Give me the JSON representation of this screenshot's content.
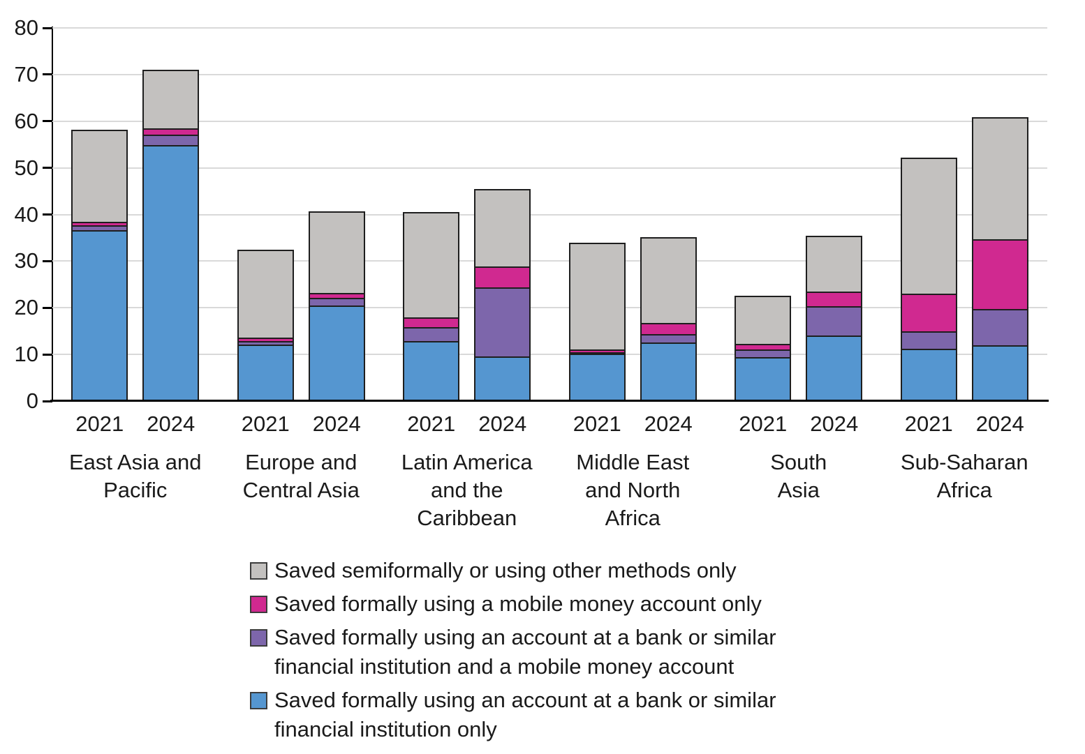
{
  "chart_data": {
    "type": "bar",
    "stacked": true,
    "title": "",
    "xlabel": "",
    "ylabel": "",
    "ylim": [
      0,
      80
    ],
    "yticks": [
      0,
      10,
      20,
      30,
      40,
      50,
      60,
      70,
      80
    ],
    "grid": "horizontal",
    "legend_position": "bottom",
    "year_labels": [
      "2021",
      "2024"
    ],
    "regions": [
      {
        "name": "East Asia and Pacific",
        "label_lines": [
          "East Asia and",
          "Pacific"
        ]
      },
      {
        "name": "Europe and Central Asia",
        "label_lines": [
          "Europe and",
          "Central Asia"
        ]
      },
      {
        "name": "Latin America and the Caribbean",
        "label_lines": [
          "Latin America",
          "and the",
          "Caribbean"
        ]
      },
      {
        "name": "Middle East and North Africa",
        "label_lines": [
          "Middle East",
          "and North",
          "Africa"
        ]
      },
      {
        "name": "South Asia",
        "label_lines": [
          "South",
          "Asia"
        ]
      },
      {
        "name": "Sub-Saharan Africa",
        "label_lines": [
          "Sub-Saharan",
          "Africa"
        ]
      }
    ],
    "categories": [
      "East Asia and Pacific 2021",
      "East Asia and Pacific 2024",
      "Europe and Central Asia 2021",
      "Europe and Central Asia 2024",
      "Latin America and the Caribbean 2021",
      "Latin America and the Caribbean 2024",
      "Middle East and North Africa 2021",
      "Middle East and North Africa 2024",
      "South Asia 2021",
      "South Asia 2024",
      "Sub-Saharan Africa 2021",
      "Sub-Saharan Africa 2024"
    ],
    "series": [
      {
        "name": "Saved formally using an account at a bank or similar financial institution only",
        "color": "#5596d0",
        "values": [
          36.7,
          55.1,
          12.0,
          20.5,
          12.8,
          9.4,
          10.0,
          12.5,
          9.4,
          14.0,
          11.0,
          11.8
        ]
      },
      {
        "name": "Saved formally using an account at a bank or similar financial institution and a mobile money account",
        "color": "#7d66ab",
        "values": [
          1.1,
          2.2,
          0.8,
          1.6,
          3.0,
          15.0,
          0.3,
          1.8,
          1.6,
          6.4,
          3.8,
          7.9
        ]
      },
      {
        "name": "Saved formally using a mobile money account only",
        "color": "#d02990",
        "values": [
          0.8,
          1.3,
          0.7,
          1.1,
          2.1,
          4.5,
          0.6,
          2.5,
          1.3,
          3.1,
          8.2,
          15.0
        ]
      },
      {
        "name": "Saved semiformally or using other methods only",
        "color": "#c3c1bf",
        "values": [
          19.6,
          12.4,
          18.9,
          17.5,
          22.6,
          16.6,
          23.0,
          18.3,
          10.3,
          12.0,
          29.2,
          26.1
        ]
      }
    ],
    "bar_totals": [
      58.2,
      71.0,
      32.4,
      40.7,
      40.5,
      45.5,
      33.9,
      35.1,
      22.6,
      35.5,
      52.2,
      60.8
    ]
  },
  "legend": {
    "items": [
      {
        "color": "#c3c1bf",
        "label": "Saved semiformally or using other methods only",
        "label_lines": [
          "Saved semiformally or using other methods only"
        ]
      },
      {
        "color": "#d02990",
        "label": "Saved formally using a mobile money account only",
        "label_lines": [
          "Saved formally using a mobile money account only"
        ]
      },
      {
        "color": "#7d66ab",
        "label": "Saved formally using an account at a bank or similar financial institution and a mobile money account",
        "label_lines": [
          "Saved formally using an account at a bank or similar",
          "financial institution and a mobile money account"
        ]
      },
      {
        "color": "#5596d0",
        "label": "Saved formally using an account at a bank or similar financial institution only",
        "label_lines": [
          "Saved formally using an account at a bank or similar",
          "financial institution only"
        ]
      }
    ]
  },
  "style": {
    "bar_border_color": "#1e1e1e",
    "gridline_color": "#d9d9d9",
    "axis_color": "#000000",
    "text_color": "#1a1a1a",
    "background_color": "#ffffff"
  }
}
